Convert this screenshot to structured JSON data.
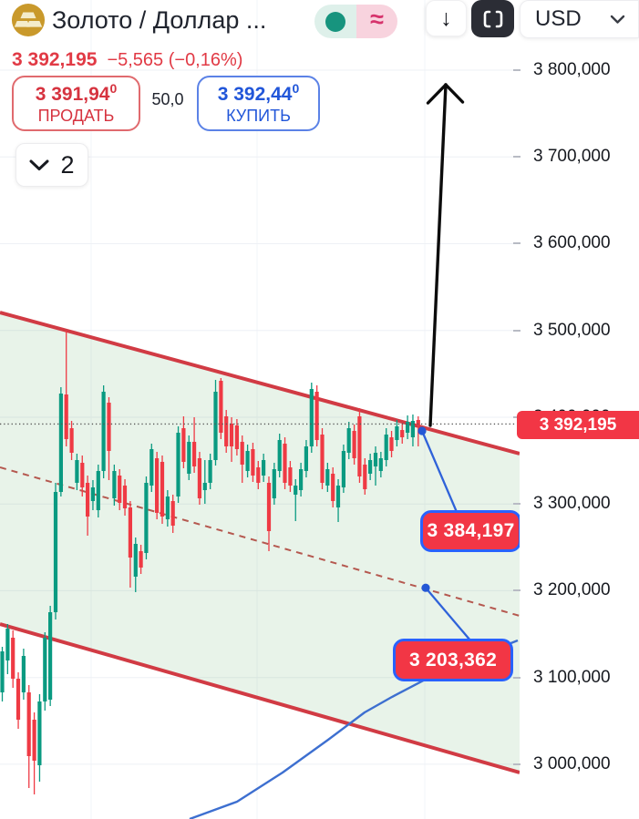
{
  "header": {
    "symbol_title": "Золото / Доллар ...",
    "usd_label": "USD",
    "download_glyph": "↓",
    "approx_glyph": "≈"
  },
  "quote": {
    "price": "3 392,195",
    "change": "−5,565 (−0,16%)"
  },
  "trade": {
    "sell_price": "3 391,94",
    "sell_sup": "0",
    "sell_label": "ПРОДАТЬ",
    "spread": "50,0",
    "buy_price": "3 392,44",
    "buy_sup": "0",
    "buy_label": "КУПИТЬ"
  },
  "objects_button": {
    "count": "2"
  },
  "colors": {
    "up": "#0a9a81",
    "down": "#ef3a44",
    "channel": "#d13b44",
    "channel_fill": "rgba(90,170,100,0.14)",
    "blue": "#2962ff",
    "badge": "#f23645",
    "grid": "#eef0f5"
  },
  "chart_data": {
    "type": "candlestick",
    "title": "Золото / Доллар (Gold / US Dollar)",
    "currency": "USD",
    "last_price": 3392195,
    "price_label": "3 392,195",
    "ylim": [
      2930000,
      3810000
    ],
    "grid": true,
    "y_axis": {
      "ticks": [
        {
          "label": "3 800,000",
          "value": 3800000
        },
        {
          "label": "3 700,000",
          "value": 3700000
        },
        {
          "label": "3 600,000",
          "value": 3600000
        },
        {
          "label": "3 500,000",
          "value": 3500000
        },
        {
          "label": "3 400,000",
          "value": 3400000
        },
        {
          "label": "3 300,000",
          "value": 3300000
        },
        {
          "label": "3 200,000",
          "value": 3200000
        },
        {
          "label": "3 100,000",
          "value": 3100000
        },
        {
          "label": "3 000,000",
          "value": 3000000
        }
      ]
    },
    "callouts": [
      {
        "label": "3 384,197",
        "value": 3384197
      },
      {
        "label": "3 203,362",
        "value": 3203362
      }
    ],
    "channel": {
      "upper": [
        [
          0,
          3520700
        ],
        [
          570,
          3358000
        ]
      ],
      "middle": [
        [
          0,
          3342200
        ],
        [
          570,
          3171100
        ]
      ],
      "lower": [
        [
          0,
          3161600
        ],
        [
          570,
          2990500
        ]
      ]
    },
    "ma_line": {
      "points": [
        [
          208,
          2936900
        ],
        [
          260,
          2956850
        ],
        [
          310,
          2990450
        ],
        [
          360,
          3028250
        ],
        [
          400,
          3059750
        ],
        [
          430,
          3077600
        ],
        [
          470,
          3099650
        ],
        [
          520,
          3122750
        ],
        [
          568,
          3142700
        ]
      ]
    },
    "markers": [
      {
        "x": 463,
        "value": 3384197
      },
      {
        "x": 467,
        "value": 3203362
      }
    ],
    "candles": [
      [
        3082900,
        3135400,
        3072400,
        3130100
      ],
      [
        3119600,
        3161600,
        3103900,
        3156400
      ],
      [
        3145900,
        3154300,
        3088100,
        3098600
      ],
      [
        3098600,
        3106000,
        3040900,
        3051400
      ],
      [
        3082900,
        3133300,
        3074500,
        3124900
      ],
      [
        3082900,
        3091300,
        2972600,
        3009400
      ],
      [
        3051400,
        3059800,
        2965300,
        3004100
      ],
      [
        2998900,
        3080800,
        2980000,
        3072400
      ],
      [
        3072400,
        3152200,
        3061900,
        3145900
      ],
      [
        3074500,
        3182600,
        3067100,
        3175300
      ],
      [
        3175300,
        3324400,
        3166900,
        3313900
      ],
      [
        3313900,
        3434600,
        3308600,
        3427300
      ],
      [
        3426200,
        3499700,
        3366400,
        3374800
      ],
      [
        3387400,
        3395800,
        3350600,
        3359000
      ],
      [
        3324400,
        3358000,
        3316000,
        3350600
      ],
      [
        3347500,
        3355900,
        3308600,
        3319100
      ],
      [
        3324400,
        3332800,
        3263500,
        3285500
      ],
      [
        3303400,
        3327500,
        3292900,
        3319100
      ],
      [
        3292900,
        3345400,
        3284500,
        3338000
      ],
      [
        3338000,
        3436700,
        3329600,
        3429400
      ],
      [
        3416800,
        3423100,
        3327500,
        3361100
      ],
      [
        3306500,
        3345400,
        3298100,
        3338000
      ],
      [
        3332800,
        3340100,
        3292900,
        3301300
      ],
      [
        3321200,
        3328600,
        3286600,
        3295000
      ],
      [
        3296000,
        3303400,
        3203600,
        3238300
      ],
      [
        3216200,
        3261400,
        3198400,
        3254000
      ],
      [
        3245600,
        3253000,
        3219400,
        3226700
      ],
      [
        3243500,
        3331700,
        3236200,
        3324400
      ],
      [
        3321200,
        3369500,
        3313900,
        3363200
      ],
      [
        3352700,
        3360100,
        3282400,
        3289700
      ],
      [
        3348500,
        3355900,
        3277100,
        3285500
      ],
      [
        3282400,
        3316000,
        3274000,
        3308600
      ],
      [
        3303400,
        3310700,
        3266600,
        3275000
      ],
      [
        3308600,
        3389500,
        3301300,
        3382100
      ],
      [
        3387400,
        3401000,
        3341200,
        3348500
      ],
      [
        3334900,
        3379000,
        3327500,
        3371600
      ],
      [
        3371600,
        3400000,
        3335900,
        3343300
      ],
      [
        3352700,
        3360100,
        3299200,
        3306500
      ],
      [
        3316000,
        3350600,
        3300200,
        3324400
      ],
      [
        3324400,
        3358000,
        3317000,
        3350600
      ],
      [
        3350600,
        3443000,
        3344300,
        3429400
      ],
      [
        3442000,
        3445100,
        3374800,
        3382100
      ],
      [
        3401000,
        3408400,
        3359000,
        3366400
      ],
      [
        3392600,
        3400000,
        3348500,
        3366400
      ],
      [
        3390500,
        3397900,
        3355900,
        3363200
      ],
      [
        3371600,
        3379000,
        3324400,
        3345400
      ],
      [
        3338000,
        3368500,
        3330700,
        3361100
      ],
      [
        3363200,
        3370600,
        3325400,
        3332800
      ],
      [
        3342200,
        3349600,
        3317000,
        3324400
      ],
      [
        3332800,
        3358000,
        3325400,
        3350600
      ],
      [
        3324400,
        3331700,
        3245600,
        3268700
      ],
      [
        3306500,
        3347500,
        3299200,
        3340100
      ],
      [
        3338000,
        3381100,
        3330700,
        3373700
      ],
      [
        3369500,
        3376900,
        3317000,
        3324400
      ],
      [
        3342200,
        3349600,
        3313900,
        3321200
      ],
      [
        3310700,
        3328600,
        3280300,
        3321200
      ],
      [
        3316000,
        3347500,
        3308600,
        3340100
      ],
      [
        3338000,
        3373700,
        3330700,
        3366400
      ],
      [
        3366400,
        3439900,
        3359000,
        3432500
      ],
      [
        3429400,
        3436700,
        3366400,
        3373700
      ],
      [
        3380000,
        3387400,
        3317000,
        3324400
      ],
      [
        3321200,
        3347500,
        3313900,
        3340100
      ],
      [
        3334900,
        3342200,
        3296000,
        3303400
      ],
      [
        3296000,
        3328600,
        3279200,
        3321200
      ],
      [
        3319100,
        3368500,
        3312800,
        3361100
      ],
      [
        3359000,
        3394700,
        3351700,
        3387400
      ],
      [
        3384200,
        3391600,
        3345400,
        3352700
      ],
      [
        3401000,
        3410500,
        3324400,
        3331700
      ],
      [
        3345400,
        3352700,
        3310700,
        3317000
      ],
      [
        3334900,
        3358000,
        3327500,
        3350600
      ],
      [
        3343300,
        3366400,
        3321200,
        3359000
      ],
      [
        3338000,
        3360100,
        3330700,
        3352700
      ],
      [
        3350600,
        3387400,
        3343300,
        3380000
      ],
      [
        3376900,
        3384200,
        3353800,
        3361100
      ],
      [
        3373700,
        3396800,
        3366400,
        3389500
      ],
      [
        3385300,
        3392600,
        3369500,
        3376900
      ],
      [
        3382100,
        3402100,
        3374800,
        3394700
      ],
      [
        3376900,
        3403100,
        3366400,
        3395800
      ],
      [
        3396800,
        3401000,
        3366400,
        3390500
      ]
    ]
  }
}
